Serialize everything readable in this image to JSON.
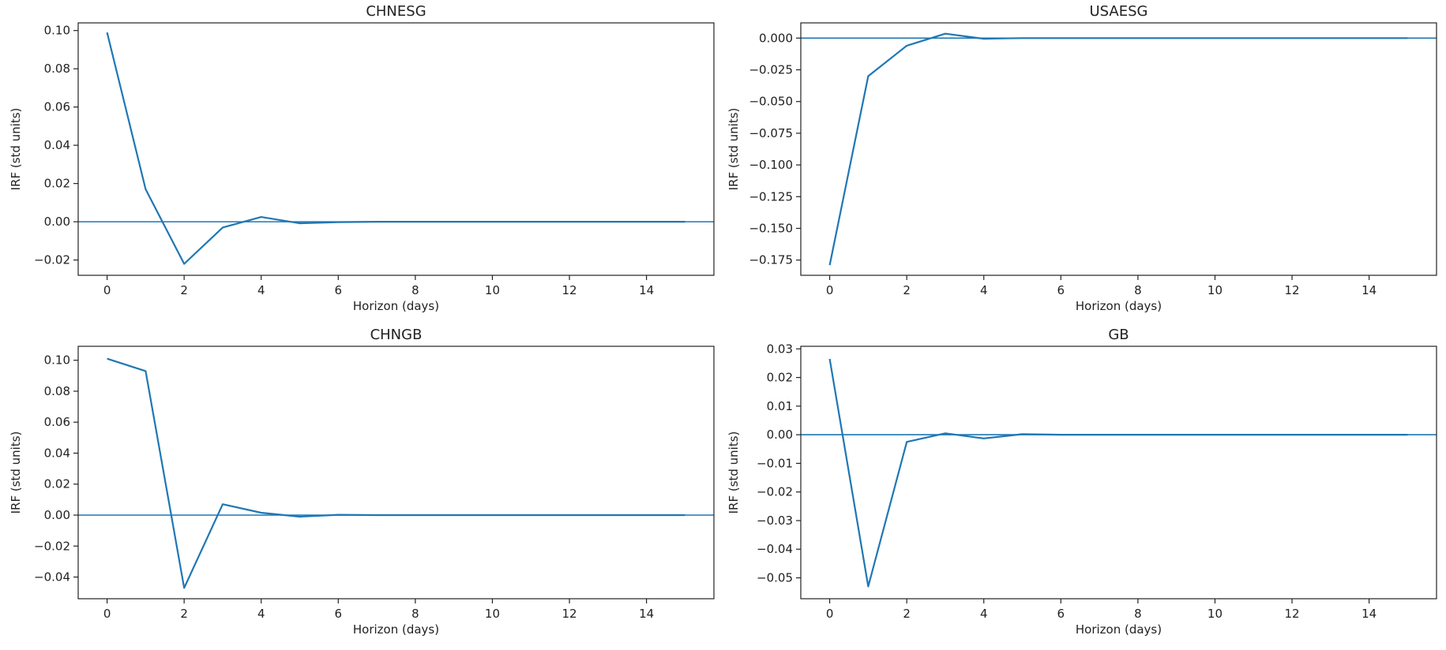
{
  "chart_data": [
    {
      "type": "line",
      "title": "CHNESG",
      "xlabel": "Horizon (days)",
      "ylabel": "IRF (std units)",
      "xlim": [
        -0.75,
        15.75
      ],
      "ylim": [
        -0.028,
        0.104
      ],
      "xticks": [
        0,
        2,
        4,
        6,
        8,
        10,
        12,
        14
      ],
      "yticks": [
        -0.02,
        0.0,
        0.02,
        0.04,
        0.06,
        0.08,
        0.1
      ],
      "ytick_labels": [
        "−0.02",
        "0.00",
        "0.02",
        "0.04",
        "0.06",
        "0.08",
        "0.10"
      ],
      "reference_line": 0,
      "x": [
        0,
        1,
        2,
        3,
        4,
        5,
        6,
        7,
        8,
        9,
        10,
        11,
        12,
        13,
        14,
        15
      ],
      "y": [
        0.099,
        0.017,
        -0.022,
        -0.003,
        0.0025,
        -0.0008,
        -0.0002,
        0.0,
        0.0,
        0.0,
        0.0,
        0.0,
        0.0,
        0.0,
        0.0,
        0.0
      ],
      "color": "#1f77b4",
      "grid": false
    },
    {
      "type": "line",
      "title": "USAESG",
      "xlabel": "Horizon (days)",
      "ylabel": "IRF (std units)",
      "xlim": [
        -0.75,
        15.75
      ],
      "ylim": [
        -0.187,
        0.012
      ],
      "xticks": [
        0,
        2,
        4,
        6,
        8,
        10,
        12,
        14
      ],
      "yticks": [
        -0.175,
        -0.15,
        -0.125,
        -0.1,
        -0.075,
        -0.05,
        -0.025,
        0.0
      ],
      "ytick_labels": [
        "−0.175",
        "−0.150",
        "−0.125",
        "−0.100",
        "−0.075",
        "−0.050",
        "−0.025",
        "0.000"
      ],
      "reference_line": 0,
      "x": [
        0,
        1,
        2,
        3,
        4,
        5,
        6,
        7,
        8,
        9,
        10,
        11,
        12,
        13,
        14,
        15
      ],
      "y": [
        -0.179,
        -0.03,
        -0.006,
        0.0035,
        -0.0005,
        0.0,
        0.0,
        0.0,
        0.0,
        0.0,
        0.0,
        0.0,
        0.0,
        0.0,
        0.0,
        0.0
      ],
      "color": "#1f77b4",
      "grid": false
    },
    {
      "type": "line",
      "title": "CHNGB",
      "xlabel": "Horizon (days)",
      "ylabel": "IRF (std units)",
      "xlim": [
        -0.75,
        15.75
      ],
      "ylim": [
        -0.054,
        0.109
      ],
      "xticks": [
        0,
        2,
        4,
        6,
        8,
        10,
        12,
        14
      ],
      "yticks": [
        -0.04,
        -0.02,
        0.0,
        0.02,
        0.04,
        0.06,
        0.08,
        0.1
      ],
      "ytick_labels": [
        "−0.04",
        "−0.02",
        "0.00",
        "0.02",
        "0.04",
        "0.06",
        "0.08",
        "0.10"
      ],
      "reference_line": 0,
      "x": [
        0,
        1,
        2,
        3,
        4,
        5,
        6,
        7,
        8,
        9,
        10,
        11,
        12,
        13,
        14,
        15
      ],
      "y": [
        0.101,
        0.093,
        -0.047,
        0.007,
        0.0015,
        -0.001,
        0.0002,
        0.0,
        0.0,
        0.0,
        0.0,
        0.0,
        0.0,
        0.0,
        0.0,
        0.0
      ],
      "color": "#1f77b4",
      "grid": false
    },
    {
      "type": "line",
      "title": "GB",
      "xlabel": "Horizon (days)",
      "ylabel": "IRF (std units)",
      "xlim": [
        -0.75,
        15.75
      ],
      "ylim": [
        -0.0573,
        0.0309
      ],
      "xticks": [
        0,
        2,
        4,
        6,
        8,
        10,
        12,
        14
      ],
      "yticks": [
        -0.05,
        -0.04,
        -0.03,
        -0.02,
        -0.01,
        0.0,
        0.01,
        0.02,
        0.03
      ],
      "ytick_labels": [
        "−0.05",
        "−0.04",
        "−0.03",
        "−0.02",
        "−0.01",
        "0.00",
        "0.01",
        "0.02",
        "0.03"
      ],
      "reference_line": 0,
      "x": [
        0,
        1,
        2,
        3,
        4,
        5,
        6,
        7,
        8,
        9,
        10,
        11,
        12,
        13,
        14,
        15
      ],
      "y": [
        0.0265,
        -0.053,
        -0.0025,
        0.0005,
        -0.0013,
        0.0002,
        0.0,
        0.0,
        0.0,
        0.0,
        0.0,
        0.0,
        0.0,
        0.0,
        0.0,
        0.0
      ],
      "color": "#1f77b4",
      "grid": false
    }
  ]
}
